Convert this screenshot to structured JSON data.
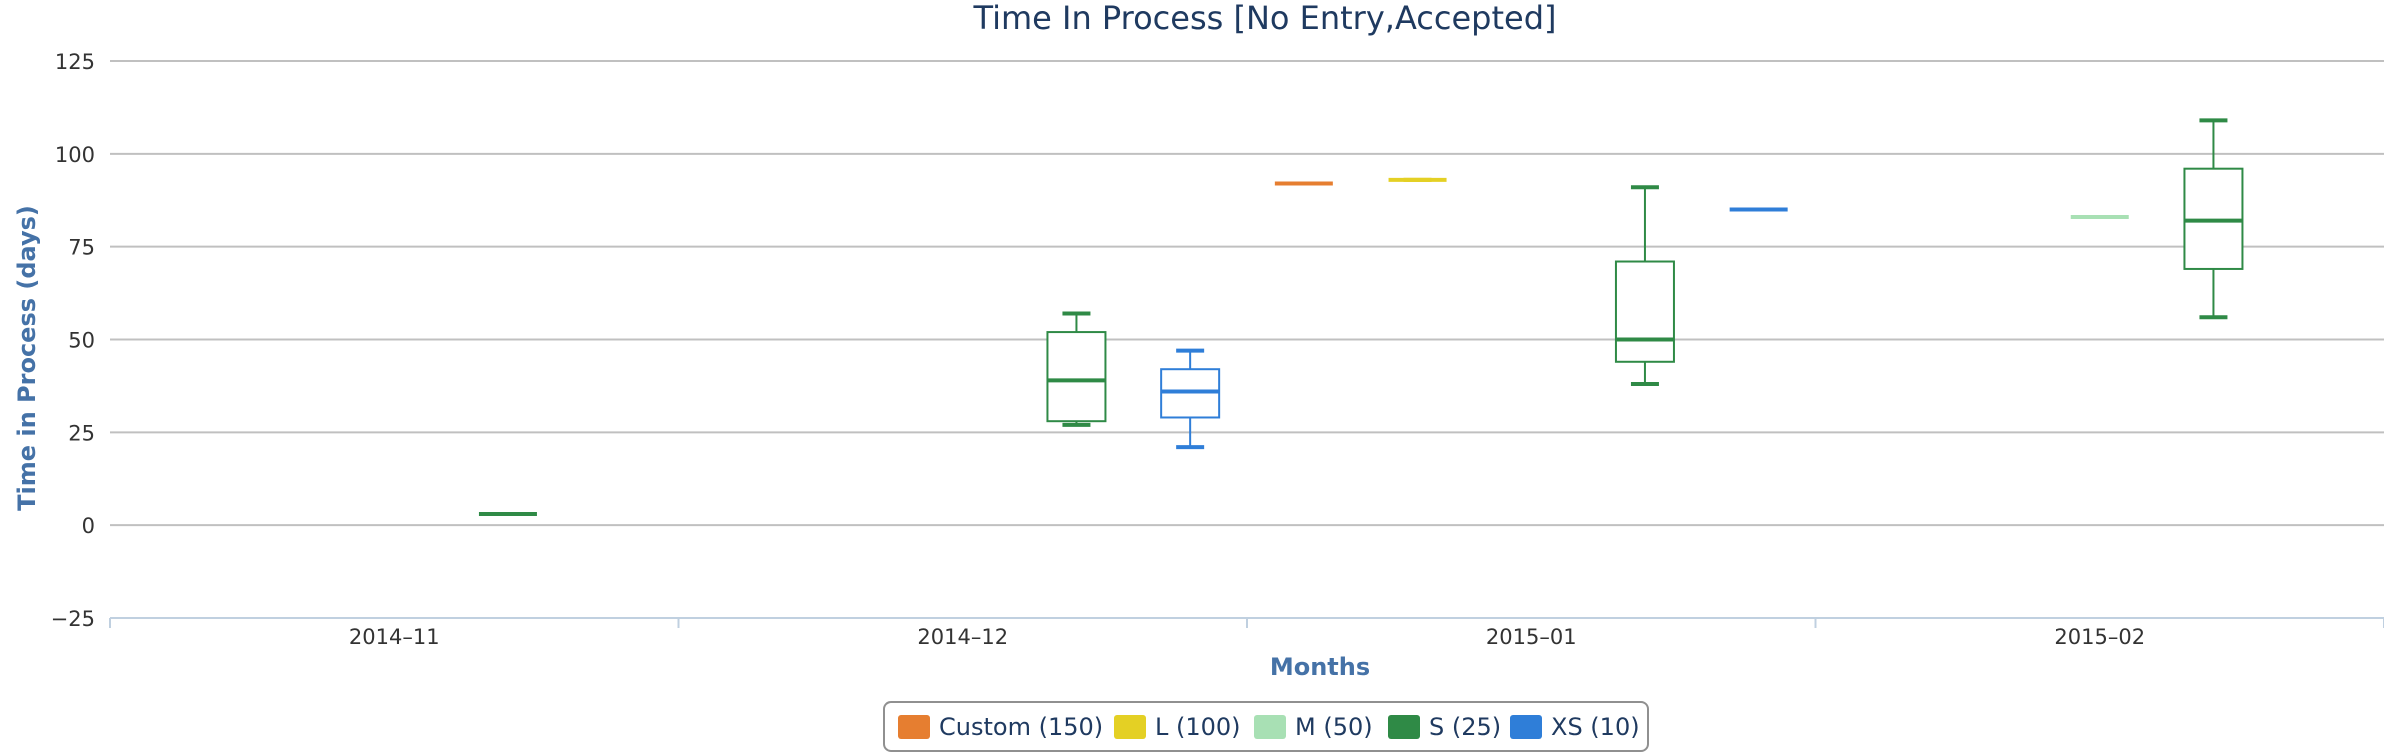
{
  "chart_data": {
    "type": "boxplot",
    "title": "Time In Process [No Entry,Accepted]",
    "xlabel": "Months",
    "ylabel": "Time in Process (days)",
    "ylim": [
      -25,
      125
    ],
    "yticks": [
      -25,
      0,
      25,
      50,
      75,
      100,
      125
    ],
    "categories": [
      "2014-11",
      "2014-12",
      "2015-01",
      "2015-02"
    ],
    "grid": true,
    "legend_position": "bottom-center",
    "series": [
      {
        "name": "Custom (150)",
        "color": "#e67e30",
        "boxes": [
          null,
          null,
          {
            "low": 92,
            "q1": 92,
            "median": 92,
            "q3": 92,
            "high": 92
          },
          null
        ]
      },
      {
        "name": "L (100)",
        "color": "#e4d024",
        "boxes": [
          null,
          null,
          {
            "low": 93,
            "q1": 93,
            "median": 93,
            "q3": 93,
            "high": 93
          },
          null
        ]
      },
      {
        "name": "M (50)",
        "color": "#a8e0b4",
        "boxes": [
          null,
          null,
          null,
          {
            "low": 83,
            "q1": 83,
            "median": 83,
            "q3": 83,
            "high": 83
          }
        ]
      },
      {
        "name": "S (25)",
        "color": "#2f8a46",
        "boxes": [
          {
            "low": 3,
            "q1": 3,
            "median": 3,
            "q3": 3,
            "high": 3
          },
          {
            "low": 27,
            "q1": 28,
            "median": 39,
            "q3": 52,
            "high": 57
          },
          {
            "low": 38,
            "q1": 44,
            "median": 50,
            "q3": 71,
            "high": 91
          },
          {
            "low": 56,
            "q1": 69,
            "median": 82,
            "q3": 96,
            "high": 109
          }
        ]
      },
      {
        "name": "XS (10)",
        "color": "#2f7ed8",
        "boxes": [
          null,
          {
            "low": 21,
            "q1": 29,
            "median": 36,
            "q3": 42,
            "high": 47
          },
          {
            "low": 85,
            "q1": 85,
            "median": 85,
            "q3": 85,
            "high": 85
          },
          null
        ]
      }
    ]
  }
}
